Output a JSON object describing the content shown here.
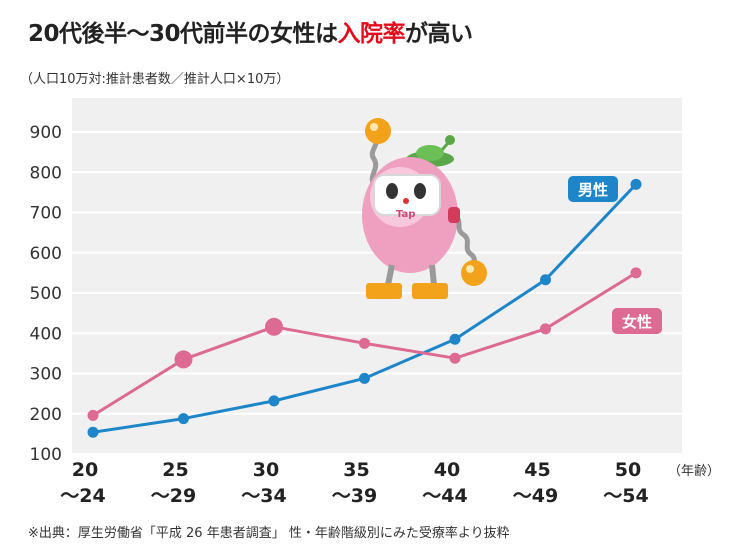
{
  "title_main": "20代後半〜30代前半の女性は",
  "title_highlight": "入院率",
  "title_end": "が高い",
  "subtitle": "（人口10万対:推計患者数／推計人口×10万）",
  "source": "※出典：厚生労働省「平成 26 年患者調査」 性・年齢階級別にみた受療率より抜粋",
  "colors": {
    "male": "#1e86c8",
    "female": "#dc6a93",
    "plot_bg": "#f0f0f0",
    "grid": "#ffffff",
    "highlight": "#e00b1c"
  },
  "mascot": {
    "label": "Tap",
    "icon": "robot-mascot-icon"
  },
  "chart_data": {
    "type": "line",
    "x_unit": "（年齢）",
    "categories": [
      [
        "20",
        "〜24"
      ],
      [
        "25",
        "〜29"
      ],
      [
        "30",
        "〜34"
      ],
      [
        "35",
        "〜39"
      ],
      [
        "40",
        "〜44"
      ],
      [
        "45",
        "〜49"
      ],
      [
        "50",
        "〜54"
      ]
    ],
    "yticks": [
      100,
      200,
      300,
      400,
      500,
      600,
      700,
      800,
      900
    ],
    "ylim": [
      100,
      900
    ],
    "grid": true,
    "series": [
      {
        "name": "男性",
        "color": "#1e86c8",
        "values": [
          154,
          188,
          232,
          288,
          385,
          533,
          770
        ]
      },
      {
        "name": "女性",
        "color": "#dc6a93",
        "values": [
          196,
          335,
          416,
          375,
          338,
          411,
          550
        ],
        "emphasized_points": [
          1,
          2
        ]
      }
    ],
    "legend": [
      {
        "name": "男性",
        "placement": "right, above male line end"
      },
      {
        "name": "女性",
        "placement": "right, below female line end"
      }
    ]
  }
}
